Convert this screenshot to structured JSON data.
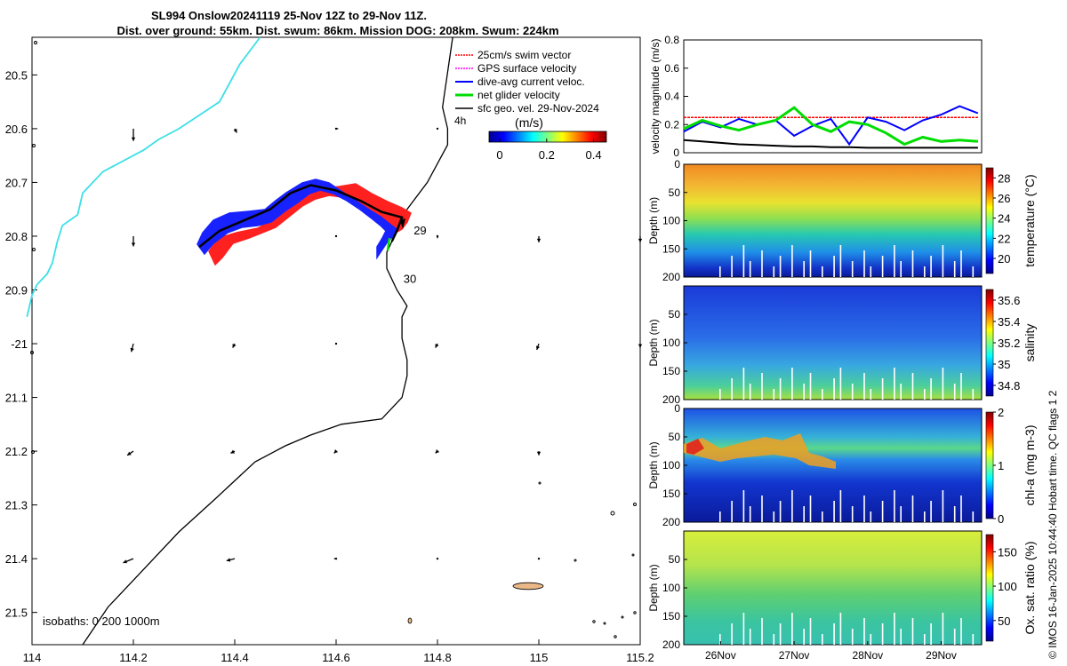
{
  "title": {
    "line1": "SL994 Onslow20241119 25-Nov 12Z to 29-Nov 11Z.",
    "line2": "Dist. over ground: 55km. Dist. swum: 86km. Mission DOG: 208km. Swum: 224km"
  },
  "credit": "© IMOS 16-Jan-2025 10:44:40 Hobart time. QC flags 1  2",
  "colors": {
    "swim": "#ff0000",
    "gps": "#ff00ff",
    "dive_avg": "#0000ff",
    "net": "#00dd00",
    "sfc_geo": "#000000",
    "coast": "#3ce0e6",
    "island": "#e8b888"
  },
  "chart_data": [
    {
      "type": "map",
      "xlim": [
        114.0,
        115.2
      ],
      "ylim": [
        -21.56,
        -20.43
      ],
      "x_ticks": [
        114,
        114.2,
        114.4,
        114.6,
        114.8,
        115,
        115.2
      ],
      "x_tick_labels": [
        "114",
        "114.2",
        "114.4",
        "114.6",
        "114.8",
        "115",
        "115.2"
      ],
      "y_ticks": [
        -20.5,
        -20.6,
        -20.7,
        -20.8,
        -20.9,
        -21.0,
        -21.1,
        -21.2,
        -21.3,
        -21.4,
        -21.5
      ],
      "y_tick_labels": [
        "20.5",
        "20.6",
        "20.7",
        "20.8",
        "20.9",
        "-21",
        "21.1",
        "21.2",
        "21.3",
        "21.4",
        "21.5"
      ],
      "legend": [
        "25cm/s swim vector",
        "GPS surface velocity",
        "dive-avg current veloc.",
        "net glider velocity",
        "sfc geo. vel. 29-Nov-2024"
      ],
      "time_step_label": "4h",
      "colorbar_title": "(m/s)",
      "colorbar_ticks": [
        "0",
        "0.2",
        "0.4"
      ],
      "day_labels": [
        {
          "text": "29",
          "lon": 114.76,
          "lat": -20.79
        },
        {
          "text": "30",
          "lon": 114.74,
          "lat": -20.88
        }
      ],
      "isobath_label": "isobaths: 0   200  1000m",
      "glider_track": [
        [
          114.33,
          -20.82
        ],
        [
          114.37,
          -20.79
        ],
        [
          114.42,
          -20.77
        ],
        [
          114.47,
          -20.75
        ],
        [
          114.51,
          -20.72
        ],
        [
          114.55,
          -20.705
        ],
        [
          114.6,
          -20.715
        ],
        [
          114.65,
          -20.735
        ],
        [
          114.69,
          -20.755
        ],
        [
          114.73,
          -20.765
        ],
        [
          114.72,
          -20.79
        ],
        [
          114.71,
          -20.81
        ]
      ],
      "isobath_200m": [
        [
          114.83,
          -20.43
        ],
        [
          114.81,
          -20.56
        ],
        [
          114.82,
          -20.6
        ],
        [
          114.82,
          -20.63
        ],
        [
          114.78,
          -20.7
        ],
        [
          114.74,
          -20.75
        ],
        [
          114.71,
          -20.81
        ],
        [
          114.7,
          -20.83
        ],
        [
          114.7,
          -20.86
        ],
        [
          114.72,
          -20.9
        ],
        [
          114.74,
          -20.93
        ],
        [
          114.73,
          -20.95
        ],
        [
          114.73,
          -20.99
        ],
        [
          114.74,
          -21.03
        ],
        [
          114.74,
          -21.06
        ],
        [
          114.73,
          -21.1
        ],
        [
          114.69,
          -21.14
        ],
        [
          114.61,
          -21.15
        ],
        [
          114.55,
          -21.17
        ],
        [
          114.5,
          -21.19
        ],
        [
          114.44,
          -21.22
        ],
        [
          114.36,
          -21.29
        ],
        [
          114.29,
          -21.35
        ],
        [
          114.22,
          -21.42
        ],
        [
          114.15,
          -21.49
        ],
        [
          114.1,
          -21.56
        ]
      ],
      "coastline": [
        [
          114.45,
          -20.43
        ],
        [
          114.41,
          -20.48
        ],
        [
          114.37,
          -20.55
        ],
        [
          114.29,
          -20.6
        ],
        [
          114.25,
          -20.62
        ],
        [
          114.22,
          -20.64
        ],
        [
          114.14,
          -20.68
        ],
        [
          114.1,
          -20.72
        ],
        [
          114.09,
          -20.76
        ],
        [
          114.06,
          -20.78
        ],
        [
          114.05,
          -20.81
        ],
        [
          114.04,
          -20.85
        ],
        [
          114.03,
          -20.87
        ],
        [
          114.01,
          -20.89
        ],
        [
          114.0,
          -20.91
        ],
        [
          113.99,
          -20.95
        ]
      ],
      "geo_arrows": [
        {
          "lon": 114.2,
          "lat": -20.6,
          "u": 0.0,
          "v": -0.06
        },
        {
          "lon": 114.4,
          "lat": -20.6,
          "u": 0.01,
          "v": -0.02
        },
        {
          "lon": 114.6,
          "lat": -20.6,
          "u": 0.01,
          "v": 0.0
        },
        {
          "lon": 114.8,
          "lat": -20.6,
          "u": 0.0,
          "v": 0.0
        },
        {
          "lon": 114.2,
          "lat": -20.8,
          "u": 0.0,
          "v": -0.05
        },
        {
          "lon": 114.4,
          "lat": -20.8,
          "u": 0.0,
          "v": -0.02
        },
        {
          "lon": 114.6,
          "lat": -20.8,
          "u": 0.0,
          "v": 0.0
        },
        {
          "lon": 114.8,
          "lat": -20.8,
          "u": 0.0,
          "v": -0.01
        },
        {
          "lon": 115.0,
          "lat": -20.8,
          "u": 0.0,
          "v": -0.03
        },
        {
          "lon": 115.2,
          "lat": -20.8,
          "u": 0.0,
          "v": -0.03
        },
        {
          "lon": 114.2,
          "lat": -21.0,
          "u": -0.01,
          "v": -0.04
        },
        {
          "lon": 114.4,
          "lat": -21.0,
          "u": -0.01,
          "v": -0.02
        },
        {
          "lon": 114.6,
          "lat": -21.0,
          "u": 0.0,
          "v": 0.0
        },
        {
          "lon": 114.8,
          "lat": -21.0,
          "u": -0.01,
          "v": -0.02
        },
        {
          "lon": 115.0,
          "lat": -21.0,
          "u": -0.01,
          "v": -0.03
        },
        {
          "lon": 115.2,
          "lat": -21.0,
          "u": 0.0,
          "v": -0.02
        },
        {
          "lon": 114.2,
          "lat": -21.2,
          "u": -0.03,
          "v": -0.02
        },
        {
          "lon": 114.4,
          "lat": -21.2,
          "u": -0.02,
          "v": -0.01
        },
        {
          "lon": 114.6,
          "lat": -21.2,
          "u": -0.01,
          "v": -0.01
        },
        {
          "lon": 114.8,
          "lat": -21.2,
          "u": -0.01,
          "v": -0.01
        },
        {
          "lon": 115.0,
          "lat": -21.2,
          "u": 0.0,
          "v": -0.02
        },
        {
          "lon": 114.2,
          "lat": -21.4,
          "u": -0.05,
          "v": -0.02
        },
        {
          "lon": 114.4,
          "lat": -21.4,
          "u": -0.04,
          "v": -0.01
        },
        {
          "lon": 114.6,
          "lat": -21.4,
          "u": -0.01,
          "v": 0.0
        },
        {
          "lon": 114.8,
          "lat": -21.4,
          "u": 0.0,
          "v": 0.0
        },
        {
          "lon": 115.0,
          "lat": -21.4,
          "u": 0.0,
          "v": 0.0
        }
      ]
    },
    {
      "type": "line",
      "ylabel": "velocity magnitude (m/s)",
      "ylim": [
        0,
        0.8
      ],
      "y_ticks": [
        "0",
        "0.2",
        "0.4",
        "0.6",
        "0.8"
      ],
      "x": [
        25.5,
        25.75,
        26.0,
        26.25,
        26.5,
        26.75,
        27.0,
        27.25,
        27.5,
        27.75,
        28.0,
        28.25,
        28.5,
        28.75,
        29.0,
        29.25,
        29.5
      ],
      "series": [
        {
          "name": "25cm/s swim vector",
          "values": [
            0.25,
            0.25,
            0.25,
            0.25,
            0.25,
            0.25,
            0.25,
            0.25,
            0.25,
            0.25,
            0.25,
            0.25,
            0.25,
            0.25,
            0.25,
            0.25,
            0.25
          ]
        },
        {
          "name": "dive-avg current veloc.",
          "values": [
            0.15,
            0.22,
            0.18,
            0.24,
            0.2,
            0.23,
            0.12,
            0.19,
            0.24,
            0.06,
            0.25,
            0.22,
            0.16,
            0.23,
            0.27,
            0.33,
            0.28
          ]
        },
        {
          "name": "net glider velocity",
          "values": [
            0.17,
            0.23,
            0.19,
            0.16,
            0.2,
            0.23,
            0.32,
            0.2,
            0.15,
            0.22,
            0.2,
            0.14,
            0.06,
            0.11,
            0.08,
            0.09,
            0.08
          ]
        },
        {
          "name": "sfc geo. vel. 29-Nov-2024",
          "values": [
            0.09,
            0.08,
            0.07,
            0.06,
            0.055,
            0.05,
            0.045,
            0.045,
            0.04,
            0.04,
            0.035,
            0.035,
            0.035,
            0.035,
            0.035,
            0.035,
            0.035
          ]
        }
      ]
    },
    {
      "type": "heatmap",
      "ylabel": "Depth (m)",
      "variable": "temperature",
      "colorbar_label": "temperature (°C)",
      "depth_ticks": [
        "0",
        "50",
        "100",
        "150",
        "200"
      ],
      "colorbar_ticks": [
        "20",
        "22",
        "24",
        "26",
        "28"
      ],
      "clim": [
        18.5,
        29
      ],
      "depth_values": [
        [
          28,
          26.5
        ],
        [
          60,
          25.5
        ],
        [
          100,
          23.5
        ],
        [
          150,
          21
        ],
        [
          190,
          19.5
        ]
      ]
    },
    {
      "type": "heatmap",
      "ylabel": "Depth (m)",
      "variable": "salinity",
      "colorbar_label": "salinity",
      "depth_ticks": [
        "50",
        "100",
        "150",
        "200"
      ],
      "colorbar_ticks": [
        "34.8",
        "35",
        "35.2",
        "35.4",
        "35.6"
      ],
      "clim": [
        34.7,
        35.7
      ],
      "depth_values": [
        [
          20,
          34.85
        ],
        [
          80,
          34.9
        ],
        [
          140,
          35.05
        ],
        [
          190,
          35.2
        ]
      ]
    },
    {
      "type": "heatmap",
      "ylabel": "Depth (m)",
      "variable": "chl-a",
      "colorbar_label": "chl-a (mg m-3)",
      "depth_ticks": [
        "0",
        "50",
        "100",
        "150",
        "200"
      ],
      "colorbar_ticks": [
        "0",
        "1",
        "2"
      ],
      "clim": [
        0,
        2
      ],
      "depth_values": [
        [
          20,
          0.2
        ],
        [
          70,
          0.8
        ],
        [
          120,
          0.2
        ],
        [
          180,
          0.05
        ]
      ]
    },
    {
      "type": "heatmap",
      "ylabel": "Depth (m)",
      "variable": "oxygen saturation",
      "colorbar_label": "Ox. sat. ratio (%)",
      "depth_ticks": [
        "50",
        "100",
        "150",
        "200"
      ],
      "colorbar_ticks": [
        "50",
        "100",
        "150"
      ],
      "clim": [
        20,
        175
      ],
      "depth_values": [
        [
          20,
          120
        ],
        [
          100,
          110
        ],
        [
          150,
          100
        ],
        [
          200,
          95
        ]
      ],
      "x_tick_labels": [
        "26Nov",
        "27Nov",
        "28Nov",
        "29Nov"
      ]
    }
  ]
}
